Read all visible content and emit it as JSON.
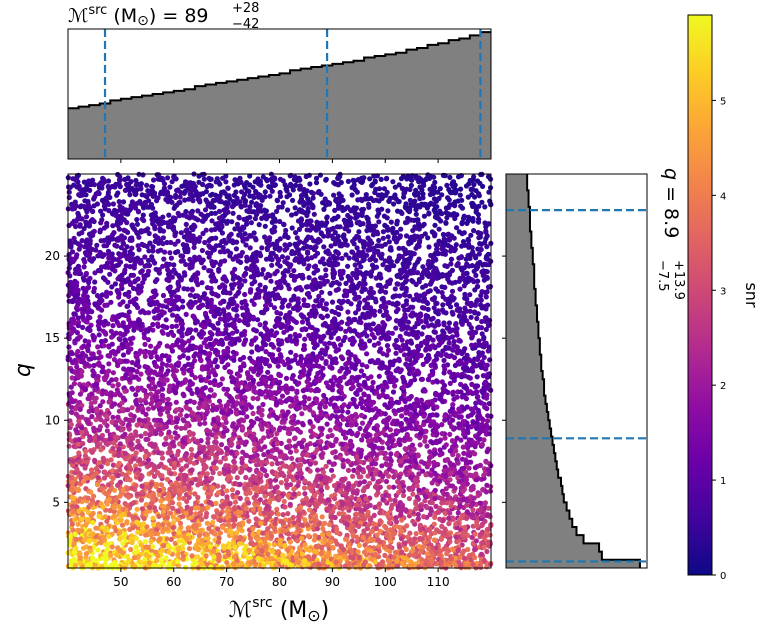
{
  "chart_data": {
    "type": "scatter",
    "colormap": "plasma",
    "xlabel": "ℳsrc (M⊙)",
    "ylabel": "q",
    "colorbar_label": "snr",
    "xlim": [
      40,
      120
    ],
    "ylim": [
      1,
      25
    ],
    "snr_range": [
      0,
      5.9
    ],
    "x_ticks": [
      50,
      60,
      70,
      80,
      90,
      100,
      110
    ],
    "y_ticks": [
      5,
      10,
      15,
      20
    ],
    "colorbar_ticks": [
      0,
      1,
      2,
      3,
      4,
      5
    ],
    "top_title": {
      "prefix": "ℳsrc (M⊙) = 89",
      "upper": "+28",
      "lower": "−42"
    },
    "right_title": {
      "prefix": "q = 8.9",
      "upper": "+13.9",
      "lower": "−7.5"
    },
    "mchirp_quantiles": [
      47,
      89,
      118
    ],
    "q_quantiles": [
      1.4,
      8.9,
      22.8
    ],
    "mchirp_histogram": {
      "description": "cumulative-like step histogram rising roughly linearly",
      "bin_edges_start": 40,
      "bin_width": 2,
      "heights": [
        0.32,
        0.33,
        0.34,
        0.35,
        0.37,
        0.38,
        0.39,
        0.4,
        0.41,
        0.42,
        0.43,
        0.44,
        0.46,
        0.47,
        0.48,
        0.49,
        0.5,
        0.51,
        0.52,
        0.53,
        0.54,
        0.56,
        0.57,
        0.58,
        0.59,
        0.6,
        0.61,
        0.62,
        0.64,
        0.65,
        0.66,
        0.67,
        0.69,
        0.7,
        0.72,
        0.73,
        0.75,
        0.76,
        0.78,
        0.8
      ]
    },
    "q_histogram": {
      "description": "step histogram decreasing from q=1 to q=25",
      "bin_edges_start": 1,
      "bin_width": 0.5,
      "widths": [
        0.95,
        0.68,
        0.66,
        0.55,
        0.5,
        0.47,
        0.45,
        0.43,
        0.41,
        0.4,
        0.39,
        0.37,
        0.36,
        0.35,
        0.34,
        0.33,
        0.32,
        0.31,
        0.3,
        0.29,
        0.28,
        0.27,
        0.27,
        0.26,
        0.25,
        0.25,
        0.24,
        0.24,
        0.23,
        0.23,
        0.22,
        0.22,
        0.21,
        0.21,
        0.2,
        0.2,
        0.2,
        0.19,
        0.19,
        0.18,
        0.18,
        0.17,
        0.17,
        0.17,
        0.16,
        0.16,
        0.15,
        0.15
      ]
    }
  }
}
